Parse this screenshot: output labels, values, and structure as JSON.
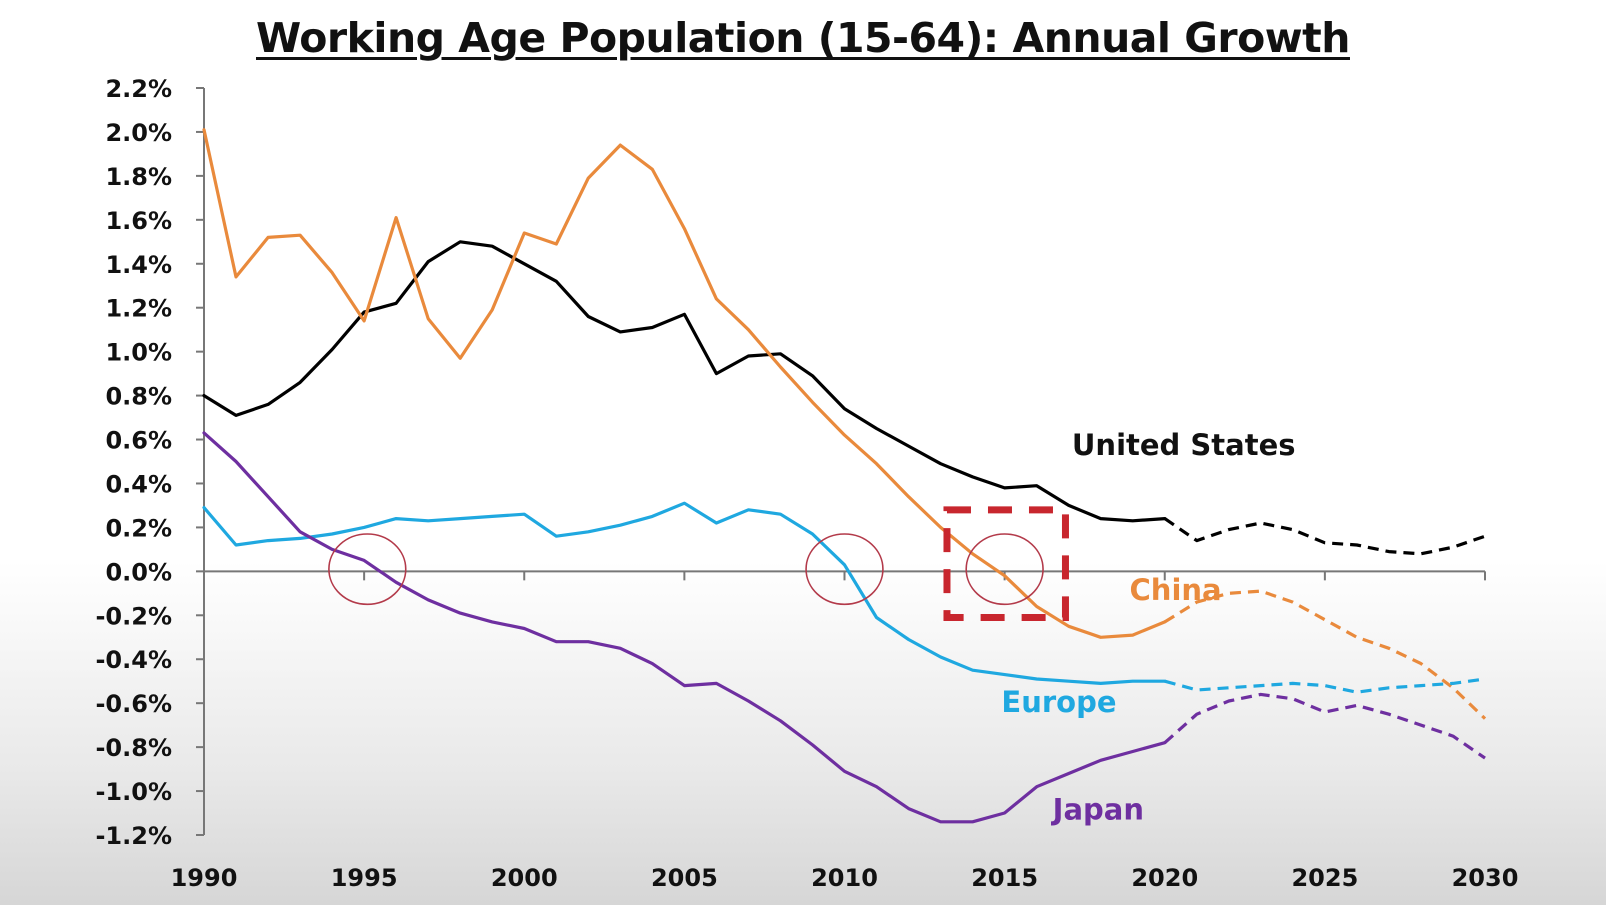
{
  "chart_data": {
    "type": "line",
    "title": "Working Age Population (15-64): Annual Growth",
    "xlabel": "",
    "ylabel": "",
    "xlim": [
      1990,
      2030
    ],
    "ylim": [
      -1.2,
      2.2
    ],
    "x_ticks": [
      "1990",
      "1995",
      "2000",
      "2005",
      "2010",
      "2015",
      "2020",
      "2025",
      "2030"
    ],
    "y_ticks": [
      "2.2%",
      "2.0%",
      "1.8%",
      "1.6%",
      "1.4%",
      "1.2%",
      "1.0%",
      "0.8%",
      "0.6%",
      "0.4%",
      "0.2%",
      "0.0%",
      "-0.2%",
      "-0.4%",
      "-0.6%",
      "-0.8%",
      "-1.0%",
      "-1.2%"
    ],
    "grid": false,
    "projection_start": 2020,
    "series": [
      {
        "name": "United States",
        "color": "#000000",
        "x": [
          1990,
          1991,
          1992,
          1993,
          1994,
          1995,
          1996,
          1997,
          1998,
          1999,
          2000,
          2001,
          2002,
          2003,
          2004,
          2005,
          2006,
          2007,
          2008,
          2009,
          2010,
          2011,
          2012,
          2013,
          2014,
          2015,
          2016,
          2017,
          2018,
          2019,
          2020,
          2021,
          2022,
          2023,
          2024,
          2025,
          2026,
          2027,
          2028,
          2029,
          2030
        ],
        "values": [
          0.8,
          0.71,
          0.76,
          0.86,
          1.01,
          1.18,
          1.22,
          1.41,
          1.5,
          1.48,
          1.4,
          1.32,
          1.16,
          1.09,
          1.11,
          1.17,
          0.9,
          0.98,
          0.99,
          0.89,
          0.74,
          0.65,
          0.57,
          0.49,
          0.43,
          0.38,
          0.39,
          0.3,
          0.24,
          0.23,
          0.24,
          0.14,
          0.19,
          0.22,
          0.19,
          0.13,
          0.12,
          0.09,
          0.08,
          0.11,
          0.16
        ]
      },
      {
        "name": "China",
        "color": "#e98a3c",
        "x": [
          1990,
          1991,
          1992,
          1993,
          1994,
          1995,
          1996,
          1997,
          1998,
          1999,
          2000,
          2001,
          2002,
          2003,
          2004,
          2005,
          2006,
          2007,
          2008,
          2009,
          2010,
          2011,
          2012,
          2013,
          2014,
          2015,
          2016,
          2017,
          2018,
          2019,
          2020,
          2021,
          2022,
          2023,
          2024,
          2025,
          2026,
          2027,
          2028,
          2029,
          2030
        ],
        "values": [
          2.01,
          1.34,
          1.52,
          1.53,
          1.36,
          1.14,
          1.61,
          1.15,
          0.97,
          1.19,
          1.54,
          1.49,
          1.79,
          1.94,
          1.83,
          1.56,
          1.24,
          1.1,
          0.93,
          0.77,
          0.62,
          0.49,
          0.34,
          0.2,
          0.08,
          -0.02,
          -0.16,
          -0.25,
          -0.3,
          -0.29,
          -0.23,
          -0.14,
          -0.1,
          -0.09,
          -0.14,
          -0.22,
          -0.3,
          -0.35,
          -0.42,
          -0.53,
          -0.67
        ]
      },
      {
        "name": "Europe",
        "color": "#1fa8e0",
        "x": [
          1990,
          1991,
          1992,
          1993,
          1994,
          1995,
          1996,
          1997,
          1998,
          1999,
          2000,
          2001,
          2002,
          2003,
          2004,
          2005,
          2006,
          2007,
          2008,
          2009,
          2010,
          2011,
          2012,
          2013,
          2014,
          2015,
          2016,
          2017,
          2018,
          2019,
          2020,
          2021,
          2022,
          2023,
          2024,
          2025,
          2026,
          2027,
          2028,
          2029,
          2030
        ],
        "values": [
          0.29,
          0.12,
          0.14,
          0.15,
          0.17,
          0.2,
          0.24,
          0.23,
          0.24,
          0.25,
          0.26,
          0.16,
          0.18,
          0.21,
          0.25,
          0.31,
          0.22,
          0.28,
          0.26,
          0.17,
          0.03,
          -0.21,
          -0.31,
          -0.39,
          -0.45,
          -0.47,
          -0.49,
          -0.5,
          -0.51,
          -0.5,
          -0.5,
          -0.54,
          -0.53,
          -0.52,
          -0.51,
          -0.52,
          -0.55,
          -0.53,
          -0.52,
          -0.51,
          -0.49
        ]
      },
      {
        "name": "Japan",
        "color": "#6e2fa0",
        "x": [
          1990,
          1991,
          1992,
          1993,
          1994,
          1995,
          1996,
          1997,
          1998,
          1999,
          2000,
          2001,
          2002,
          2003,
          2004,
          2005,
          2006,
          2007,
          2008,
          2009,
          2010,
          2011,
          2012,
          2013,
          2014,
          2015,
          2016,
          2017,
          2018,
          2019,
          2020,
          2021,
          2022,
          2023,
          2024,
          2025,
          2026,
          2027,
          2028,
          2029,
          2030
        ],
        "values": [
          0.63,
          0.5,
          0.34,
          0.18,
          0.1,
          0.05,
          -0.05,
          -0.13,
          -0.19,
          -0.23,
          -0.26,
          -0.32,
          -0.32,
          -0.35,
          -0.42,
          -0.52,
          -0.51,
          -0.59,
          -0.68,
          -0.79,
          -0.91,
          -0.98,
          -1.08,
          -1.14,
          -1.14,
          -1.1,
          -0.98,
          -0.92,
          -0.86,
          -0.82,
          -0.78,
          -0.65,
          -0.59,
          -0.56,
          -0.58,
          -0.64,
          -0.61,
          -0.65,
          -0.7,
          -0.75,
          -0.85
        ]
      }
    ],
    "series_labels": [
      {
        "text": "United States",
        "color": "#111111",
        "x": 2017.1,
        "y": 0.53
      },
      {
        "text": "China",
        "color": "#e98a3c",
        "x": 2018.9,
        "y": -0.13
      },
      {
        "text": "Europe",
        "color": "#1fa8e0",
        "x": 2014.9,
        "y": -0.64
      },
      {
        "text": "Japan",
        "color": "#6e2fa0",
        "x": 2016.5,
        "y": -1.13
      }
    ],
    "annotations": [
      {
        "type": "circle",
        "color": "#b33a4a",
        "x": 1995.1,
        "y": 0.01,
        "rx_years": 1.2,
        "ry_pct": 0.16
      },
      {
        "type": "circle",
        "color": "#b33a4a",
        "x": 2010.0,
        "y": 0.01,
        "rx_years": 1.2,
        "ry_pct": 0.16
      },
      {
        "type": "circle",
        "color": "#b33a4a",
        "x": 2015.0,
        "y": 0.01,
        "rx_years": 1.2,
        "ry_pct": 0.16
      },
      {
        "type": "dashed-rectangle",
        "color": "#c8262e",
        "x0": 2013.2,
        "x1": 2016.9,
        "y0": -0.21,
        "y1": 0.28
      }
    ]
  }
}
